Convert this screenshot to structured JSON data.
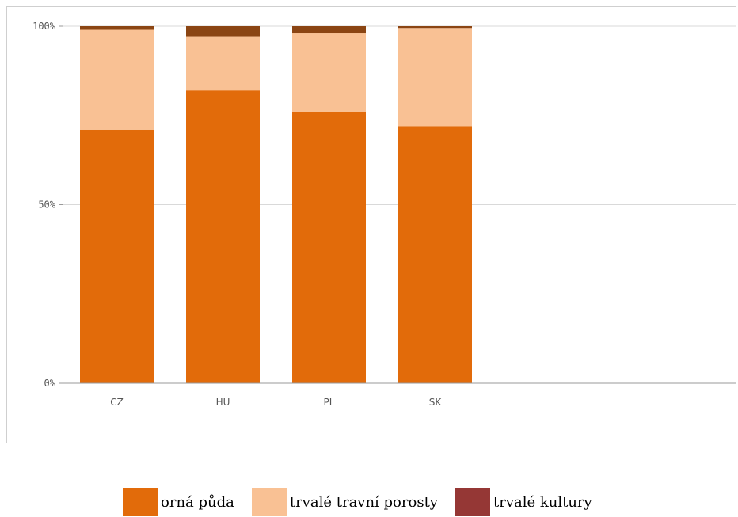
{
  "chart_data": {
    "type": "bar",
    "stacked": true,
    "categories": [
      "CZ",
      "HU",
      "PL",
      "SK"
    ],
    "series": [
      {
        "name": "orná půda",
        "color": "#e26b0a",
        "values": [
          71,
          82,
          76,
          72
        ]
      },
      {
        "name": "trvalé travní porosty",
        "color": "#f9c194",
        "values": [
          28,
          15,
          22,
          27.5
        ]
      },
      {
        "name": "trvalé kultury",
        "color": "#953735",
        "bar_color": "#8b4513",
        "values": [
          1,
          3,
          2,
          0.5
        ]
      }
    ],
    "ylim": [
      0,
      100
    ],
    "yticks": [
      {
        "value": 0,
        "label": "0%"
      },
      {
        "value": 50,
        "label": "50%"
      },
      {
        "value": 100,
        "label": "100%"
      }
    ],
    "grid": true,
    "legend_position": "bottom"
  }
}
